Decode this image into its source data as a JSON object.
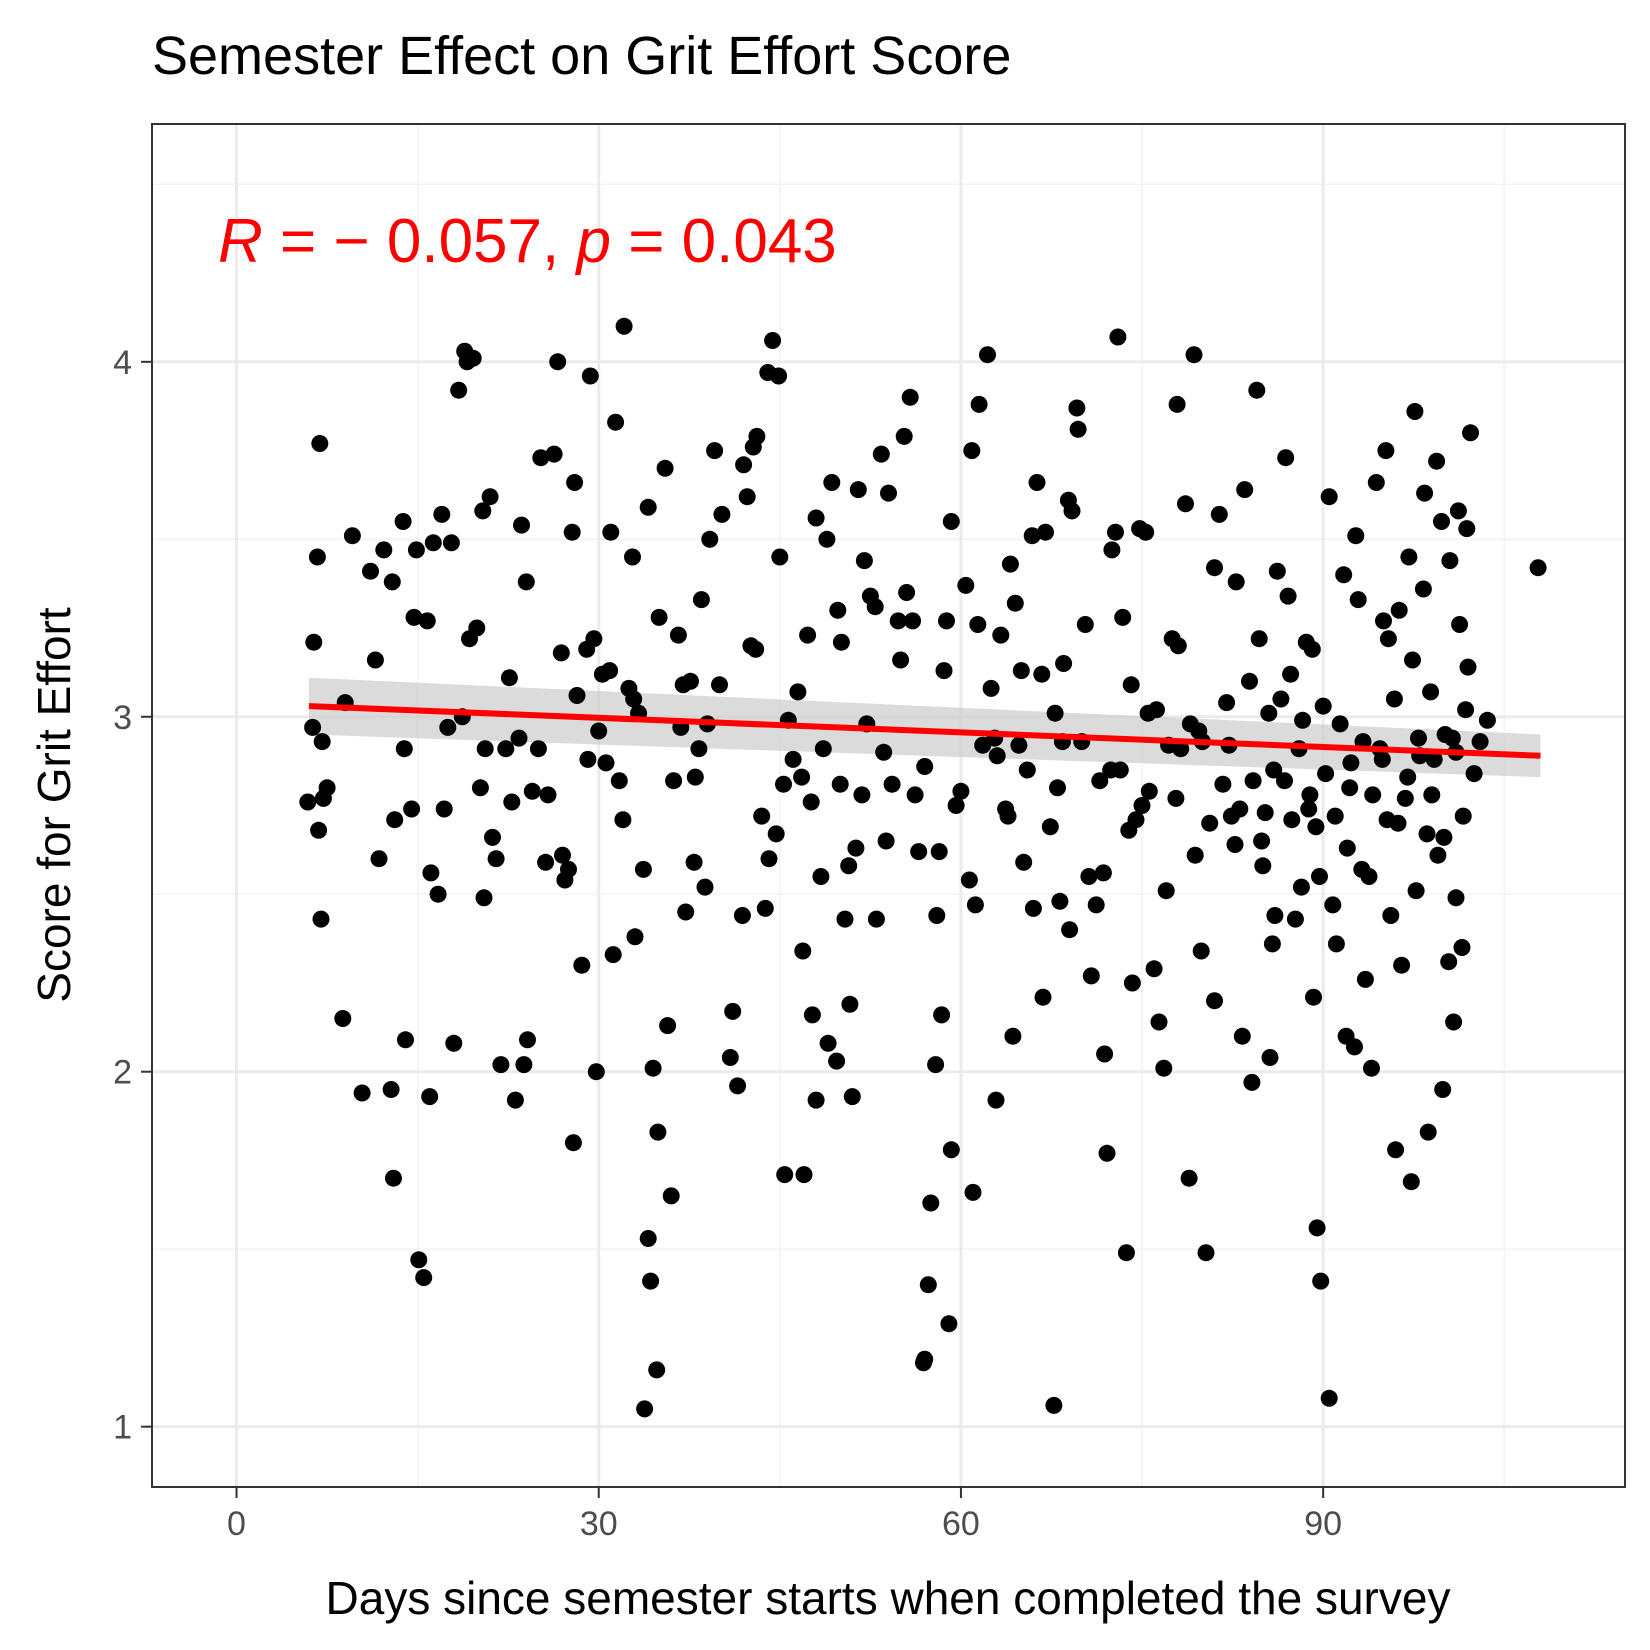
{
  "chart_data": {
    "type": "scatter",
    "title": "Semester Effect on Grit Effort Score",
    "xlabel": "Days since semester starts when completed the survey",
    "ylabel": "Score for Grit Effort",
    "xlim": [
      -7,
      115
    ],
    "ylim": [
      0.83,
      4.67
    ],
    "x_ticks": [
      0,
      30,
      60,
      90
    ],
    "y_ticks": [
      1,
      2,
      3,
      4
    ],
    "x_tick_labels": [
      "0",
      "30",
      "60",
      "90"
    ],
    "y_tick_labels": [
      "1",
      "2",
      "3",
      "4"
    ],
    "grid": true,
    "annotation": {
      "R_symbol": "R",
      "R_value": " = − 0.057, ",
      "p_symbol": "p",
      "p_value": " = 0.043"
    },
    "fit_line": {
      "x": [
        6,
        108
      ],
      "y": [
        3.03,
        2.89
      ],
      "ci_lower": [
        2.95,
        2.83
      ],
      "ci_upper": [
        3.11,
        2.95
      ],
      "color": "#ff0000",
      "ci_color": "#cfcfcf"
    },
    "point_color": "#000000",
    "points": [
      [
        6.4,
        3.21
      ],
      [
        6.9,
        3.77
      ],
      [
        6.7,
        3.45
      ],
      [
        7.1,
        2.93
      ],
      [
        6.3,
        2.97
      ],
      [
        7.2,
        2.77
      ],
      [
        5.9,
        2.76
      ],
      [
        6.8,
        2.68
      ],
      [
        7.0,
        2.43
      ],
      [
        8.8,
        2.15
      ],
      [
        9.6,
        3.51
      ],
      [
        10.4,
        1.94
      ],
      [
        11.1,
        3.41
      ],
      [
        11.5,
        3.16
      ],
      [
        12.2,
        3.47
      ],
      [
        12.8,
        1.95
      ],
      [
        13.1,
        2.71
      ],
      [
        13.0,
        1.7
      ],
      [
        13.8,
        3.55
      ],
      [
        14.0,
        2.09
      ],
      [
        13.9,
        2.91
      ],
      [
        14.5,
        2.74
      ],
      [
        14.9,
        3.47
      ],
      [
        15.1,
        1.47
      ],
      [
        15.5,
        1.42
      ],
      [
        15.8,
        3.27
      ],
      [
        16.1,
        2.56
      ],
      [
        16.3,
        3.49
      ],
      [
        16.7,
        2.5
      ],
      [
        17.0,
        3.57
      ],
      [
        17.2,
        2.74
      ],
      [
        17.5,
        2.97
      ],
      [
        17.8,
        3.49
      ],
      [
        18.0,
        2.08
      ],
      [
        18.4,
        3.92
      ],
      [
        18.9,
        4.03
      ],
      [
        19.1,
        4.0
      ],
      [
        19.3,
        3.22
      ],
      [
        19.9,
        3.25
      ],
      [
        20.2,
        2.8
      ],
      [
        20.5,
        2.49
      ],
      [
        20.6,
        2.91
      ],
      [
        21.2,
        2.66
      ],
      [
        21.9,
        2.02
      ],
      [
        22.3,
        2.91
      ],
      [
        22.8,
        2.76
      ],
      [
        23.1,
        1.92
      ],
      [
        23.4,
        2.94
      ],
      [
        23.8,
        2.02
      ],
      [
        24.1,
        2.09
      ],
      [
        24.5,
        2.79
      ],
      [
        25.0,
        2.91
      ],
      [
        25.2,
        3.73
      ],
      [
        25.8,
        2.78
      ],
      [
        26.3,
        3.74
      ],
      [
        26.6,
        4.0
      ],
      [
        27.0,
        2.61
      ],
      [
        27.2,
        2.54
      ],
      [
        27.5,
        2.57
      ],
      [
        27.9,
        1.8
      ],
      [
        28.2,
        3.06
      ],
      [
        28.6,
        2.3
      ],
      [
        29.0,
        3.19
      ],
      [
        29.3,
        3.96
      ],
      [
        29.6,
        3.22
      ],
      [
        29.8,
        2.0
      ],
      [
        30.3,
        3.12
      ],
      [
        30.6,
        2.87
      ],
      [
        31.0,
        3.52
      ],
      [
        31.4,
        3.83
      ],
      [
        31.7,
        2.82
      ],
      [
        32.1,
        4.1
      ],
      [
        32.5,
        3.08
      ],
      [
        32.9,
        3.05
      ],
      [
        33.3,
        3.01
      ],
      [
        33.7,
        2.57
      ],
      [
        34.1,
        3.59
      ],
      [
        34.5,
        2.01
      ],
      [
        35.0,
        3.28
      ],
      [
        35.5,
        3.7
      ],
      [
        36.2,
        2.82
      ],
      [
        36.8,
        2.97
      ],
      [
        37.2,
        2.45
      ],
      [
        37.6,
        3.1
      ],
      [
        38.0,
        2.83
      ],
      [
        38.5,
        3.33
      ],
      [
        39.0,
        2.98
      ],
      [
        39.2,
        3.5
      ],
      [
        39.6,
        3.75
      ],
      [
        40.2,
        3.57
      ],
      [
        40.9,
        2.04
      ],
      [
        41.1,
        2.17
      ],
      [
        41.5,
        1.96
      ],
      [
        42.0,
        3.71
      ],
      [
        42.3,
        3.62
      ],
      [
        42.8,
        3.76
      ],
      [
        43.1,
        3.79
      ],
      [
        43.5,
        2.72
      ],
      [
        43.8,
        2.46
      ],
      [
        44.0,
        3.97
      ],
      [
        44.4,
        4.06
      ],
      [
        44.9,
        3.96
      ],
      [
        45.3,
        2.81
      ],
      [
        45.7,
        2.99
      ],
      [
        46.1,
        2.88
      ],
      [
        46.5,
        3.07
      ],
      [
        46.8,
        2.83
      ],
      [
        47.3,
        3.23
      ],
      [
        47.7,
        2.16
      ],
      [
        48.0,
        1.92
      ],
      [
        48.4,
        2.55
      ],
      [
        48.6,
        2.91
      ],
      [
        48.9,
        3.5
      ],
      [
        49.3,
        3.66
      ],
      [
        49.8,
        3.3
      ],
      [
        50.1,
        3.21
      ],
      [
        50.4,
        2.43
      ],
      [
        50.8,
        2.19
      ],
      [
        51.0,
        1.93
      ],
      [
        51.3,
        2.63
      ],
      [
        51.8,
        2.78
      ],
      [
        52.2,
        2.98
      ],
      [
        52.5,
        3.34
      ],
      [
        52.9,
        3.31
      ],
      [
        53.0,
        2.43
      ],
      [
        53.4,
        3.74
      ],
      [
        53.8,
        2.65
      ],
      [
        54.3,
        2.81
      ],
      [
        54.8,
        3.27
      ],
      [
        55.3,
        3.79
      ],
      [
        55.8,
        3.9
      ],
      [
        56.2,
        2.78
      ],
      [
        56.5,
        2.62
      ],
      [
        56.9,
        1.18
      ],
      [
        57.0,
        1.19
      ],
      [
        57.3,
        1.4
      ],
      [
        57.5,
        1.63
      ],
      [
        57.9,
        2.02
      ],
      [
        58.2,
        2.62
      ],
      [
        58.4,
        2.16
      ],
      [
        58.8,
        3.27
      ],
      [
        59.2,
        3.55
      ],
      [
        59.6,
        2.75
      ],
      [
        60.0,
        2.79
      ],
      [
        60.4,
        3.37
      ],
      [
        60.9,
        3.75
      ],
      [
        61.0,
        1.66
      ],
      [
        61.4,
        3.26
      ],
      [
        61.8,
        2.92
      ],
      [
        62.2,
        4.02
      ],
      [
        62.5,
        3.08
      ],
      [
        62.8,
        2.94
      ],
      [
        63.3,
        3.23
      ],
      [
        63.7,
        2.74
      ],
      [
        64.1,
        3.43
      ],
      [
        64.5,
        3.32
      ],
      [
        64.8,
        2.92
      ],
      [
        65.2,
        2.59
      ],
      [
        65.5,
        2.85
      ],
      [
        65.9,
        3.51
      ],
      [
        66.3,
        3.66
      ],
      [
        66.7,
        3.12
      ],
      [
        67.0,
        3.52
      ],
      [
        67.4,
        2.69
      ],
      [
        67.8,
        3.01
      ],
      [
        68.2,
        2.48
      ],
      [
        68.5,
        3.15
      ],
      [
        68.9,
        3.61
      ],
      [
        69.2,
        3.58
      ],
      [
        69.7,
        3.81
      ],
      [
        70.0,
        2.93
      ],
      [
        70.3,
        3.26
      ],
      [
        70.8,
        2.27
      ],
      [
        71.2,
        2.47
      ],
      [
        71.5,
        2.82
      ],
      [
        71.8,
        2.56
      ],
      [
        72.1,
        1.77
      ],
      [
        72.4,
        2.85
      ],
      [
        72.8,
        3.52
      ],
      [
        73.0,
        4.07
      ],
      [
        73.4,
        3.28
      ],
      [
        73.7,
        1.49
      ],
      [
        74.1,
        3.09
      ],
      [
        74.5,
        2.71
      ],
      [
        74.8,
        3.53
      ],
      [
        75.0,
        2.75
      ],
      [
        75.3,
        3.52
      ],
      [
        75.6,
        2.79
      ],
      [
        76.0,
        2.29
      ],
      [
        76.4,
        2.14
      ],
      [
        76.8,
        2.01
      ],
      [
        77.2,
        2.92
      ],
      [
        77.5,
        3.22
      ],
      [
        77.9,
        3.88
      ],
      [
        78.2,
        2.91
      ],
      [
        78.6,
        3.6
      ],
      [
        79.0,
        2.98
      ],
      [
        79.3,
        4.02
      ],
      [
        79.7,
        2.96
      ],
      [
        80.0,
        2.93
      ],
      [
        80.3,
        1.49
      ],
      [
        80.6,
        2.7
      ],
      [
        81.0,
        2.2
      ],
      [
        81.4,
        3.57
      ],
      [
        81.7,
        2.81
      ],
      [
        82.0,
        3.04
      ],
      [
        82.4,
        2.72
      ],
      [
        82.8,
        3.38
      ],
      [
        83.1,
        2.74
      ],
      [
        83.5,
        3.64
      ],
      [
        83.9,
        3.1
      ],
      [
        84.2,
        2.82
      ],
      [
        84.5,
        3.92
      ],
      [
        84.9,
        2.65
      ],
      [
        85.2,
        2.73
      ],
      [
        85.5,
        3.01
      ],
      [
        85.8,
        2.36
      ],
      [
        86.2,
        3.41
      ],
      [
        86.5,
        3.05
      ],
      [
        86.8,
        2.82
      ],
      [
        87.1,
        3.34
      ],
      [
        87.4,
        2.71
      ],
      [
        87.7,
        2.43
      ],
      [
        88.0,
        2.91
      ],
      [
        88.3,
        2.99
      ],
      [
        88.6,
        3.21
      ],
      [
        88.9,
        2.78
      ],
      [
        89.1,
        3.19
      ],
      [
        89.4,
        2.69
      ],
      [
        89.7,
        2.55
      ],
      [
        90.0,
        3.03
      ],
      [
        90.2,
        2.84
      ],
      [
        90.5,
        1.08
      ],
      [
        90.8,
        2.47
      ],
      [
        91.1,
        2.36
      ],
      [
        91.4,
        2.98
      ],
      [
        91.7,
        3.4
      ],
      [
        92.0,
        2.63
      ],
      [
        92.3,
        2.87
      ],
      [
        92.6,
        2.07
      ],
      [
        92.9,
        3.33
      ],
      [
        93.2,
        2.57
      ],
      [
        93.5,
        2.26
      ],
      [
        93.8,
        2.55
      ],
      [
        94.1,
        2.78
      ],
      [
        94.4,
        3.66
      ],
      [
        94.7,
        2.91
      ],
      [
        95.0,
        3.27
      ],
      [
        95.3,
        2.71
      ],
      [
        95.6,
        2.44
      ],
      [
        95.9,
        3.05
      ],
      [
        96.2,
        2.7
      ],
      [
        96.5,
        2.3
      ],
      [
        96.8,
        2.77
      ],
      [
        97.1,
        3.45
      ],
      [
        97.4,
        3.16
      ],
      [
        97.7,
        2.51
      ],
      [
        98.0,
        2.89
      ],
      [
        98.3,
        3.36
      ],
      [
        98.6,
        2.67
      ],
      [
        98.9,
        3.07
      ],
      [
        99.2,
        2.88
      ],
      [
        99.5,
        2.61
      ],
      [
        99.8,
        3.55
      ],
      [
        100.1,
        2.95
      ],
      [
        100.4,
        2.31
      ],
      [
        100.7,
        2.94
      ],
      [
        101.0,
        2.49
      ],
      [
        101.3,
        3.26
      ],
      [
        101.6,
        2.72
      ],
      [
        101.9,
        3.53
      ],
      [
        102.2,
        3.8
      ],
      [
        102.5,
        2.84
      ],
      [
        103.0,
        2.93
      ],
      [
        103.6,
        2.99
      ],
      [
        107.8,
        3.42
      ],
      [
        33.8,
        1.05
      ],
      [
        34.8,
        1.16
      ],
      [
        34.9,
        1.83
      ],
      [
        36.0,
        1.65
      ],
      [
        34.3,
        1.41
      ],
      [
        34.1,
        1.53
      ],
      [
        59.0,
        1.29
      ],
      [
        67.7,
        1.06
      ],
      [
        89.8,
        1.41
      ],
      [
        89.5,
        1.56
      ],
      [
        68.4,
        2.93
      ],
      [
        69.6,
        3.87
      ],
      [
        78.9,
        1.7
      ],
      [
        84.1,
        1.97
      ],
      [
        85.6,
        2.04
      ],
      [
        49.7,
        2.03
      ],
      [
        47.0,
        1.71
      ],
      [
        45.4,
        1.71
      ],
      [
        59.2,
        1.78
      ],
      [
        62.9,
        1.92
      ],
      [
        12.9,
        3.38
      ],
      [
        14.7,
        3.28
      ],
      [
        20.4,
        3.58
      ],
      [
        22.6,
        3.11
      ],
      [
        24.0,
        3.38
      ],
      [
        25.6,
        2.59
      ],
      [
        27.8,
        3.52
      ],
      [
        30.9,
        3.13
      ],
      [
        32.8,
        3.45
      ],
      [
        36.6,
        3.23
      ],
      [
        38.8,
        2.52
      ],
      [
        41.9,
        2.44
      ],
      [
        44.7,
        2.67
      ],
      [
        46.9,
        2.34
      ],
      [
        50.7,
        2.58
      ],
      [
        53.6,
        2.9
      ],
      [
        55.0,
        3.16
      ],
      [
        58.0,
        2.44
      ],
      [
        60.7,
        2.54
      ],
      [
        63.9,
        2.72
      ],
      [
        66.0,
        2.46
      ],
      [
        70.6,
        2.55
      ],
      [
        73.9,
        2.68
      ],
      [
        76.2,
        3.02
      ],
      [
        79.4,
        2.61
      ],
      [
        82.7,
        2.64
      ],
      [
        86.0,
        2.44
      ],
      [
        88.2,
        2.52
      ],
      [
        91.0,
        2.72
      ],
      [
        93.3,
        2.93
      ],
      [
        95.4,
        3.22
      ],
      [
        97.9,
        2.94
      ],
      [
        100.0,
        2.66
      ],
      [
        101.8,
        3.02
      ],
      [
        96.0,
        1.78
      ],
      [
        97.3,
        1.69
      ],
      [
        98.7,
        1.83
      ],
      [
        99.9,
        1.95
      ],
      [
        100.8,
        2.14
      ],
      [
        101.5,
        2.35
      ],
      [
        7.5,
        2.8
      ],
      [
        9.0,
        3.04
      ],
      [
        11.8,
        2.6
      ],
      [
        16.0,
        1.93
      ],
      [
        18.7,
        3.0
      ],
      [
        21.5,
        2.6
      ],
      [
        23.6,
        3.54
      ],
      [
        26.9,
        3.18
      ],
      [
        29.1,
        2.88
      ],
      [
        31.2,
        2.33
      ],
      [
        33.0,
        2.38
      ],
      [
        35.7,
        2.13
      ],
      [
        37.9,
        2.59
      ],
      [
        40.0,
        3.09
      ],
      [
        42.6,
        3.2
      ],
      [
        45.0,
        3.45
      ],
      [
        47.6,
        2.76
      ],
      [
        49.0,
        2.08
      ],
      [
        51.5,
        3.64
      ],
      [
        54.0,
        3.63
      ],
      [
        56.0,
        3.27
      ],
      [
        58.6,
        3.13
      ],
      [
        61.2,
        2.47
      ],
      [
        64.3,
        2.1
      ],
      [
        66.8,
        2.21
      ],
      [
        69.0,
        2.4
      ],
      [
        71.9,
        2.05
      ],
      [
        74.2,
        2.25
      ],
      [
        77.0,
        2.51
      ],
      [
        79.9,
        2.34
      ],
      [
        83.3,
        2.1
      ],
      [
        85.0,
        2.58
      ],
      [
        87.3,
        3.12
      ],
      [
        89.2,
        2.21
      ],
      [
        91.9,
        2.1
      ],
      [
        94.0,
        2.01
      ],
      [
        96.3,
        3.3
      ],
      [
        98.4,
        3.63
      ],
      [
        100.5,
        3.44
      ],
      [
        102.0,
        3.14
      ],
      [
        19.6,
        4.01
      ],
      [
        21.0,
        3.62
      ],
      [
        28.0,
        3.66
      ],
      [
        37.0,
        3.09
      ],
      [
        43.0,
        3.19
      ],
      [
        48.0,
        3.56
      ],
      [
        52.0,
        3.44
      ],
      [
        55.5,
        3.35
      ],
      [
        61.5,
        3.88
      ],
      [
        65.0,
        3.13
      ],
      [
        72.5,
        3.47
      ],
      [
        75.5,
        3.01
      ],
      [
        78.0,
        3.2
      ],
      [
        81.0,
        3.42
      ],
      [
        84.7,
        3.22
      ],
      [
        86.9,
        3.73
      ],
      [
        90.5,
        3.62
      ],
      [
        92.7,
        3.51
      ],
      [
        95.2,
        3.75
      ],
      [
        97.6,
        3.86
      ],
      [
        99.4,
        3.72
      ],
      [
        101.2,
        3.58
      ],
      [
        30.0,
        2.96
      ],
      [
        32.0,
        2.71
      ],
      [
        38.3,
        2.91
      ],
      [
        44.1,
        2.6
      ],
      [
        50.0,
        2.81
      ],
      [
        57.0,
        2.86
      ],
      [
        63.0,
        2.89
      ],
      [
        68.0,
        2.8
      ],
      [
        73.2,
        2.85
      ],
      [
        77.8,
        2.77
      ],
      [
        82.2,
        2.92
      ],
      [
        85.9,
        2.85
      ],
      [
        88.8,
        2.74
      ],
      [
        92.2,
        2.8
      ],
      [
        94.9,
        2.88
      ],
      [
        97.0,
        2.83
      ],
      [
        99.0,
        2.78
      ],
      [
        101.0,
        2.9
      ]
    ]
  }
}
